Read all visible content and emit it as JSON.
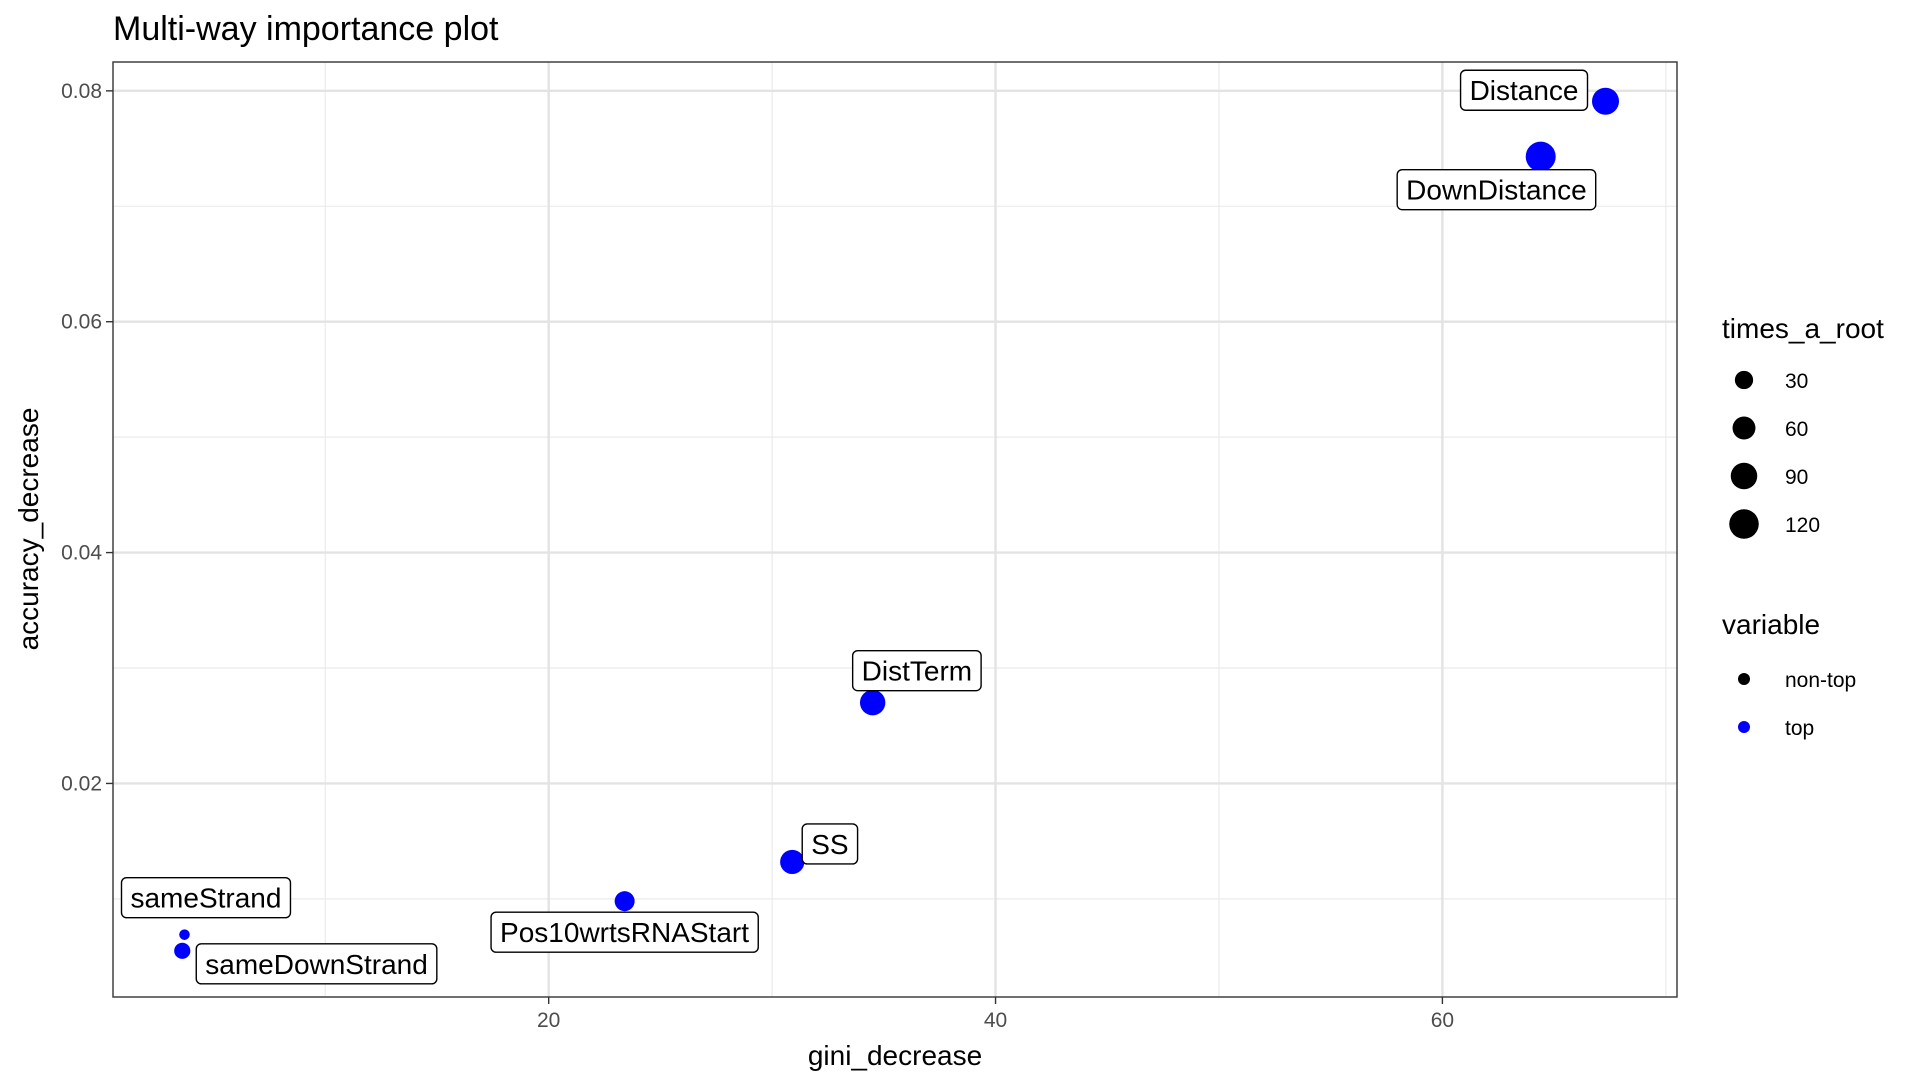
{
  "chart_data": {
    "type": "scatter",
    "title": "Multi-way importance plot",
    "xlabel": "gini_decrease",
    "ylabel": "accuracy_decrease",
    "xlim": [
      0.5,
      70.5
    ],
    "ylim": [
      0.0015,
      0.0825
    ],
    "x_ticks": [
      20,
      40,
      60
    ],
    "x_tick_labels": [
      "20",
      "40",
      "60"
    ],
    "x_minor_ticks": [
      10,
      30,
      50,
      70
    ],
    "y_ticks": [
      0.02,
      0.04,
      0.06,
      0.08
    ],
    "y_tick_labels": [
      "0.02",
      "0.04",
      "0.06",
      "0.08"
    ],
    "y_minor_ticks": [
      0.01,
      0.03,
      0.05,
      0.07
    ],
    "grid": true,
    "points": [
      {
        "label": "Distance",
        "x": 67.3,
        "y": 0.0791,
        "times_a_root": 95,
        "variable": "top",
        "label_anchor": "upper-left"
      },
      {
        "label": "DownDistance",
        "x": 64.4,
        "y": 0.0743,
        "times_a_root": 125,
        "variable": "top",
        "label_anchor": "lower-left"
      },
      {
        "label": "DistTerm",
        "x": 34.5,
        "y": 0.027,
        "times_a_root": 80,
        "variable": "top",
        "label_anchor": "upper-right"
      },
      {
        "label": "SS",
        "x": 30.9,
        "y": 0.0132,
        "times_a_root": 70,
        "variable": "top",
        "label_anchor": "upper-right"
      },
      {
        "label": "Pos10wrtsRNAStart",
        "x": 23.4,
        "y": 0.0098,
        "times_a_root": 40,
        "variable": "top",
        "label_anchor": "lower"
      },
      {
        "label": "sameStrand",
        "x": 3.7,
        "y": 0.0069,
        "times_a_root": 3,
        "variable": "top",
        "label_anchor": "upper-left"
      },
      {
        "label": "sameDownStrand",
        "x": 3.6,
        "y": 0.0055,
        "times_a_root": 20,
        "variable": "top",
        "label_anchor": "lower-right"
      }
    ],
    "legend": {
      "placement": "right",
      "size_title": "times_a_root",
      "size_entries": [
        {
          "label": "30",
          "value": 30
        },
        {
          "label": "60",
          "value": 60
        },
        {
          "label": "90",
          "value": 90
        },
        {
          "label": "120",
          "value": 120
        }
      ],
      "color_title": "variable",
      "color_entries": [
        {
          "label": "non-top",
          "color": "#000000"
        },
        {
          "label": "top",
          "color": "#0000ff"
        }
      ]
    },
    "colors": {
      "top": "#0000ff",
      "non-top": "#000000"
    }
  }
}
